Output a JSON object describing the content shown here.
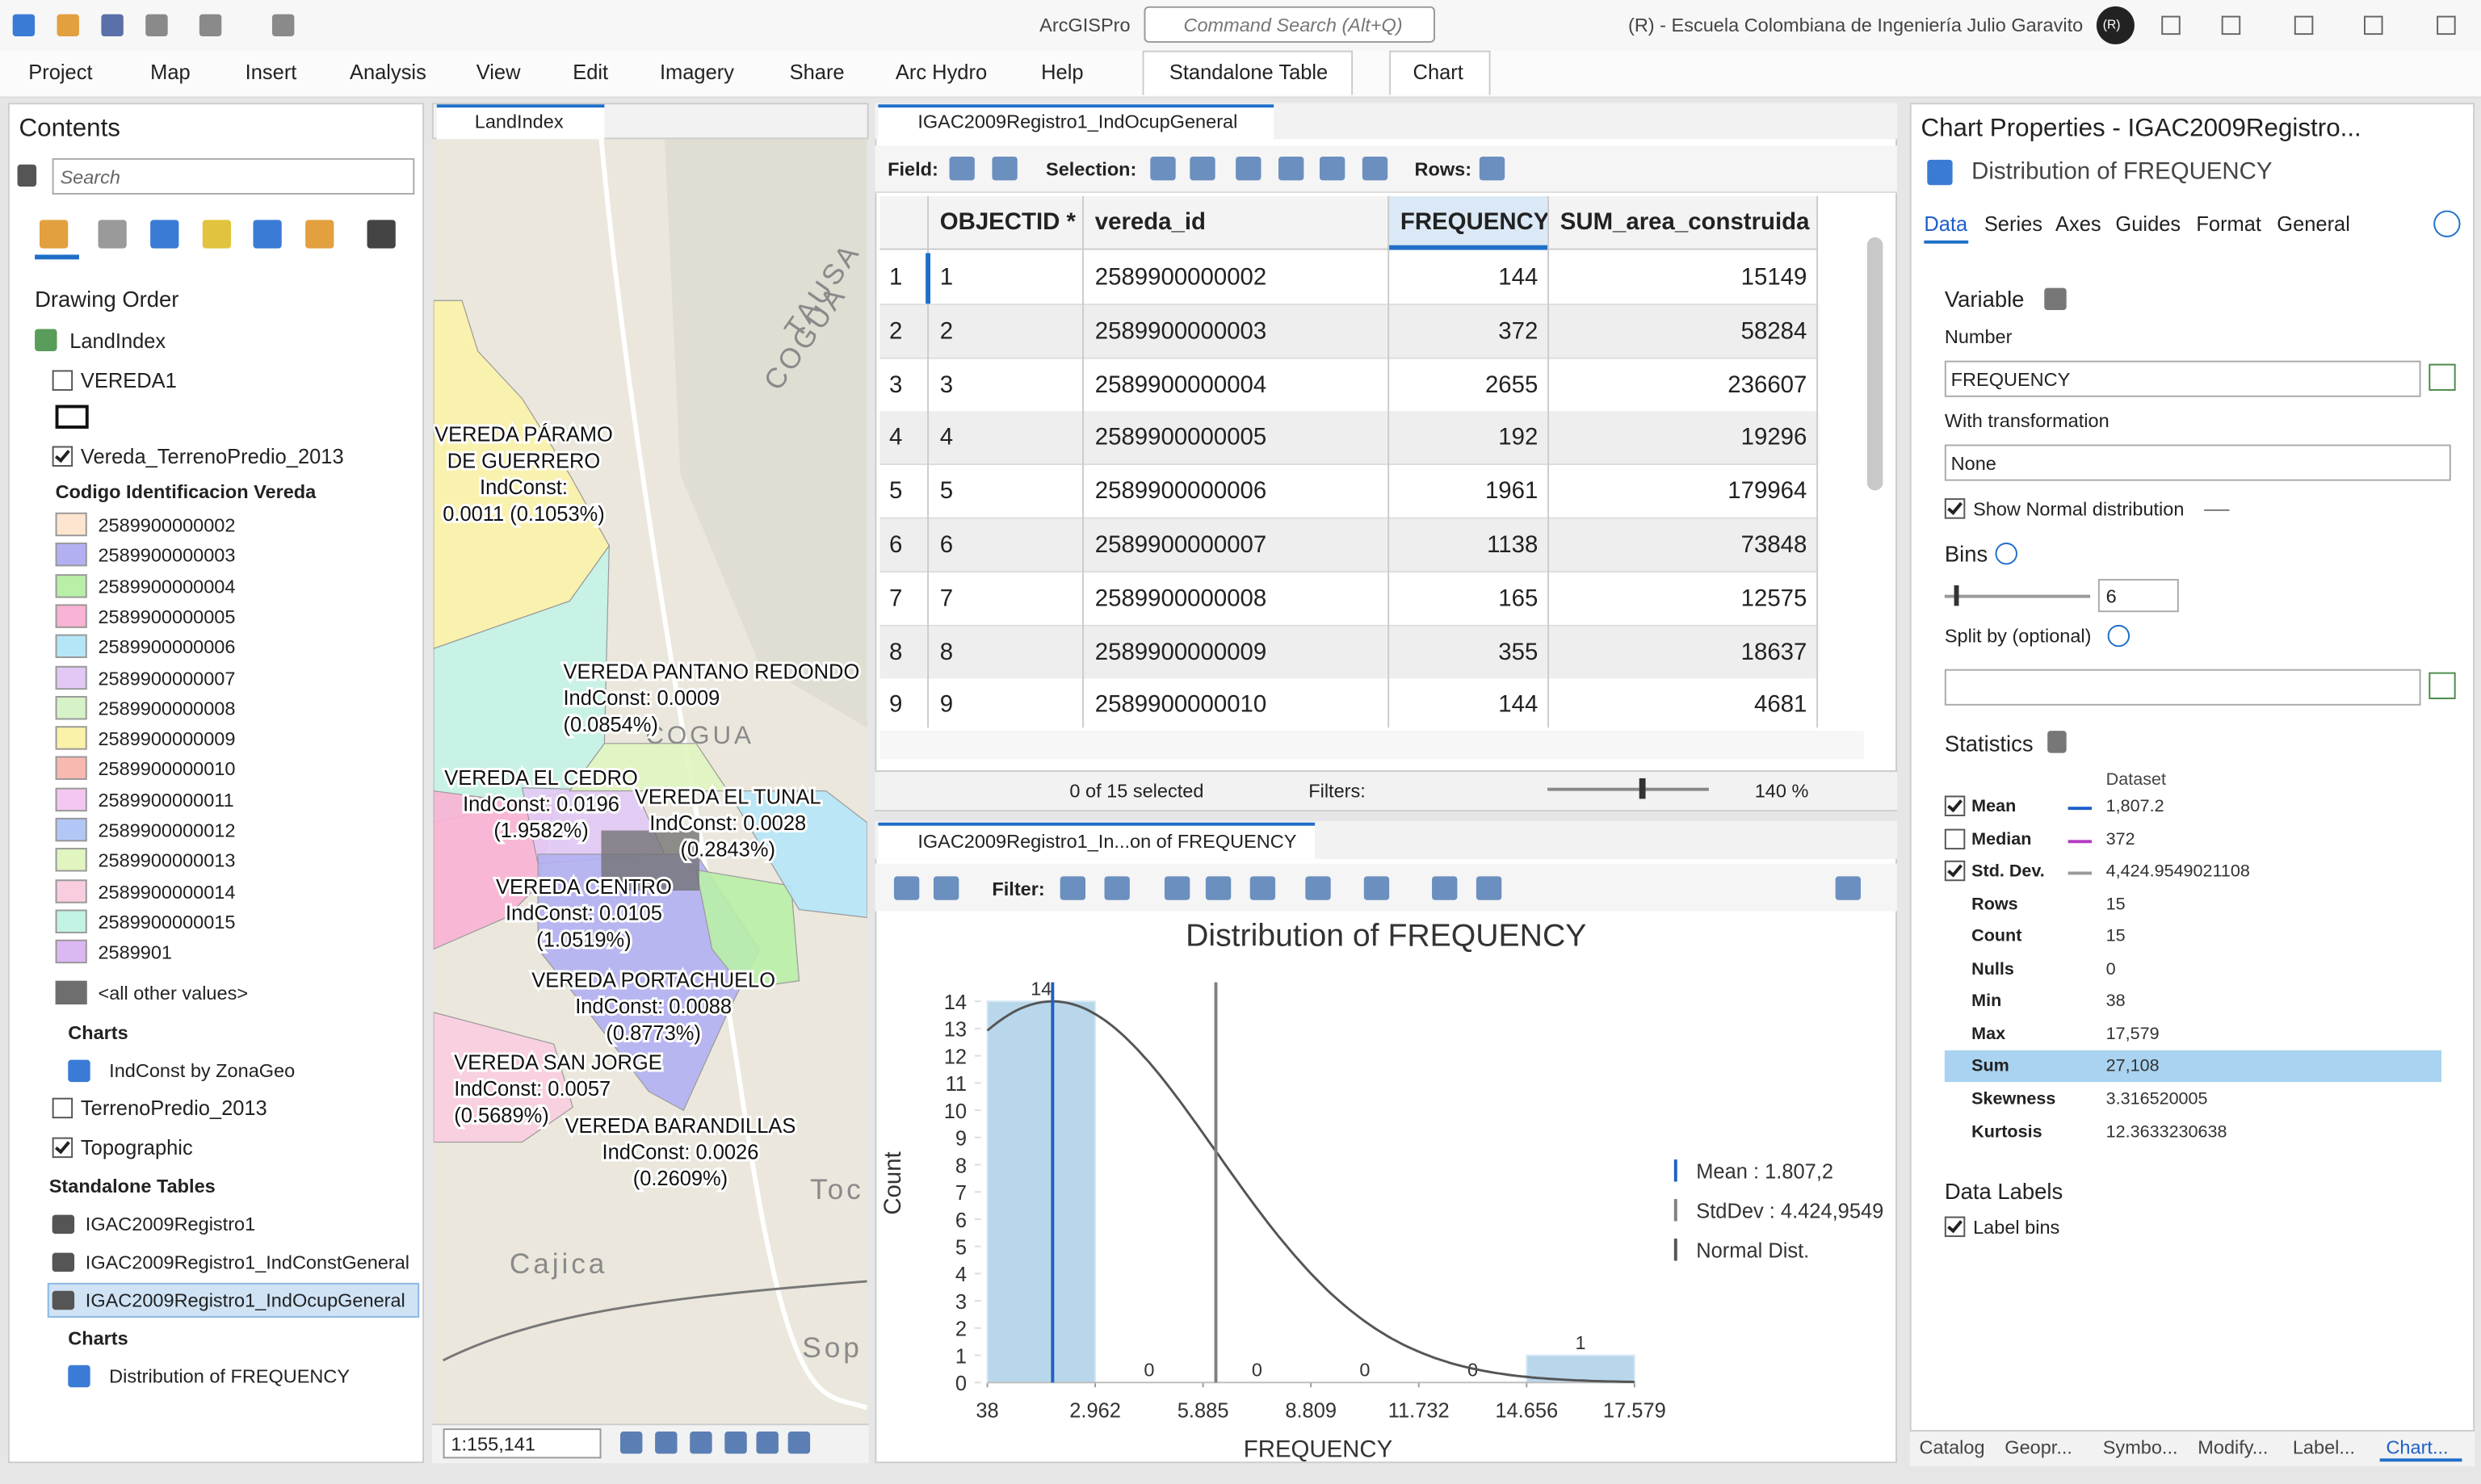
{
  "app": {
    "title": "ArcGISPro",
    "search_placeholder": "Command Search (Alt+Q)",
    "account": "(R) - Escuela Colombiana de Ingeniería Julio Garavito",
    "avatar": "(R)"
  },
  "ribbon": {
    "tabs": [
      "Project",
      "Map",
      "Insert",
      "Analysis",
      "View",
      "Edit",
      "Imagery",
      "Share",
      "Arc Hydro",
      "Help"
    ],
    "contextual_tabs": [
      "Standalone Table",
      "Chart"
    ]
  },
  "contents": {
    "title": "Contents",
    "search_placeholder": "Search",
    "heading": "Drawing Order",
    "map": "LandIndex",
    "vereda1": {
      "name": "VEREDA1",
      "checked": false
    },
    "vereda_layer": {
      "name": "Vereda_TerrenoPredio_2013",
      "checked": true,
      "field": "Codigo Identificacion Vereda",
      "classes": [
        {
          "label": "2589900000002",
          "color": "#fde5cf"
        },
        {
          "label": "2589900000003",
          "color": "#b3b0f2"
        },
        {
          "label": "2589900000004",
          "color": "#b9efa7"
        },
        {
          "label": "2589900000005",
          "color": "#f9b3d4"
        },
        {
          "label": "2589900000006",
          "color": "#b5e6f7"
        },
        {
          "label": "2589900000007",
          "color": "#e2c9f5"
        },
        {
          "label": "2589900000008",
          "color": "#d6f3c8"
        },
        {
          "label": "2589900000009",
          "color": "#fbf2a9"
        },
        {
          "label": "2589900000010",
          "color": "#f8b9b0"
        },
        {
          "label": "2589900000011",
          "color": "#f4c7f2"
        },
        {
          "label": "2589900000012",
          "color": "#b3c7f7"
        },
        {
          "label": "2589900000013",
          "color": "#e0f5c0"
        },
        {
          "label": "2589900000014",
          "color": "#f9cde0"
        },
        {
          "label": "2589900000015",
          "color": "#c3f3e5"
        },
        {
          "label": "2589901",
          "color": "#dcb8f2"
        }
      ],
      "other": {
        "label": "<all other values>",
        "color": "#6e6e6e"
      }
    },
    "charts_heading": "Charts",
    "layer_chart": "IndConst by ZonaGeo",
    "terreno": {
      "name": "TerrenoPredio_2013",
      "checked": false
    },
    "basemap": {
      "name": "Topographic",
      "checked": true
    },
    "tables_heading": "Standalone Tables",
    "tables": [
      "IGAC2009Registro1",
      "IGAC2009Registro1_IndConstGeneral",
      "IGAC2009Registro1_IndOcupGeneral"
    ],
    "table_charts_heading": "Charts",
    "table_chart": "Distribution of FREQUENCY"
  },
  "map": {
    "tab": "LandIndex",
    "scale": "1:155,141",
    "labels": [
      [
        "VEREDA PÁRAMO",
        "DE GUERRERO",
        "IndConst:",
        "0.0011 (0.1053%)"
      ],
      [
        "VEREDA PANTANO REDONDO",
        "IndConst: 0.0009",
        "(0.0854%)"
      ],
      [
        "VEREDA EL CEDRO",
        "IndConst: 0.0196",
        "(1.9582%)"
      ],
      [
        "VEREDA EL TUNAL",
        "IndConst: 0.0028",
        "(0.2843%)"
      ],
      [
        "VEREDA CENTRO",
        "IndConst: 0.0105",
        "(1.0519%)"
      ],
      [
        "VEREDA PORTACHUELO",
        "IndConst: 0.0088",
        "(0.8773%)"
      ],
      [
        "VEREDA SAN JORGE",
        "IndConst: 0.0057",
        "(0.5689%)"
      ],
      [
        "VEREDA BARANDILLAS",
        "IndConst: 0.0026",
        "(0.2609%)"
      ]
    ],
    "basemap_labels": [
      "TAUSA",
      "COGUA",
      "COGUA",
      "Cajica",
      "Toc",
      "Sop"
    ]
  },
  "table": {
    "tab": "IGAC2009Registro1_IndOcupGeneral",
    "field_label": "Field:",
    "selection_label": "Selection:",
    "rows_label": "Rows:",
    "columns": [
      "OBJECTID *",
      "vereda_id",
      "FREQUENCY",
      "SUM_area_construida"
    ],
    "row_numbers": [
      1,
      2,
      3,
      4,
      5,
      6,
      7,
      8,
      9
    ],
    "rows": [
      [
        1,
        "2589900000002",
        144,
        15149
      ],
      [
        2,
        "2589900000003",
        372,
        58284
      ],
      [
        3,
        "2589900000004",
        2655,
        236607
      ],
      [
        4,
        "2589900000005",
        192,
        19296
      ],
      [
        5,
        "2589900000006",
        1961,
        179964
      ],
      [
        6,
        "2589900000007",
        1138,
        73848
      ],
      [
        7,
        "2589900000008",
        165,
        12575
      ],
      [
        8,
        "2589900000009",
        355,
        18637
      ],
      [
        9,
        "2589900000010",
        144,
        4681
      ]
    ],
    "status": "0 of 15 selected",
    "filters_label": "Filters:",
    "zoom": "140 %"
  },
  "chart_panel": {
    "tab": "IGAC2009Registro1_In...on of FREQUENCY",
    "filter_label": "Filter:"
  },
  "chart_data": {
    "type": "histogram",
    "title": "Distribution of FREQUENCY",
    "x_label": "FREQUENCY",
    "y_label": "Count",
    "bins": [
      38,
      2961.5,
      5885,
      8808.5,
      11732,
      14655.5,
      17579
    ],
    "counts": [
      14,
      0,
      0,
      0,
      0,
      1
    ],
    "color": "#b9d7ea",
    "xlim": [
      38,
      17579
    ],
    "xticks": [
      38,
      {
        "value": 2961.5,
        "label": "2.962"
      },
      {
        "value": 5885,
        "label": "5.885"
      },
      {
        "value": 8808.5,
        "label": "8.809"
      },
      {
        "value": 11732,
        "label": "11.732"
      },
      {
        "value": 14655.5,
        "label": "14.656"
      },
      {
        "value": 17579,
        "label": "17.579"
      }
    ],
    "ylim": [
      0,
      14
    ],
    "yticks": [
      0,
      1,
      2,
      3,
      4,
      5,
      6,
      7,
      8,
      9,
      10,
      11,
      12,
      13,
      14
    ],
    "mean": {
      "value": 1807.2,
      "label": "Mean : 1.807,2",
      "color": "#1f5fc8"
    },
    "std_dev": {
      "value": 4424.9549021108,
      "label": "StdDev : 4.424,9549",
      "color": "#808080"
    },
    "normal": {
      "label": "Normal Dist.",
      "color": "#555555"
    }
  },
  "properties": {
    "title": "Chart Properties - IGAC2009Registro...",
    "chart_name": "Distribution of FREQUENCY",
    "tabs": [
      "Data",
      "Series",
      "Axes",
      "Guides",
      "Format",
      "General"
    ],
    "variable_heading": "Variable",
    "number_label": "Number",
    "number_value": "FREQUENCY",
    "transformation_label": "With transformation",
    "transformation_value": "None",
    "show_normal": {
      "label": "Show Normal distribution",
      "checked": true
    },
    "bins_heading": "Bins",
    "bins_value": "6",
    "split_label": "Split by (optional)",
    "statistics_heading": "Statistics",
    "dataset_label": "Dataset",
    "statistics": [
      {
        "name": "Mean",
        "value": "1,807.2",
        "checked": true,
        "color": "#1f5fc8"
      },
      {
        "name": "Median",
        "value": "372",
        "checked": false,
        "color": "#b23cc0"
      },
      {
        "name": "Std. Dev.",
        "value": "4,424.9549021108",
        "checked": true,
        "color": "#9a9a9a"
      },
      {
        "name": "Rows",
        "value": "15"
      },
      {
        "name": "Count",
        "value": "15"
      },
      {
        "name": "Nulls",
        "value": "0"
      },
      {
        "name": "Min",
        "value": "38"
      },
      {
        "name": "Max",
        "value": "17,579"
      },
      {
        "name": "Sum",
        "value": "27,108",
        "selected": true
      },
      {
        "name": "Skewness",
        "value": "3.316520005"
      },
      {
        "name": "Kurtosis",
        "value": "12.3633230638"
      }
    ],
    "data_labels_heading": "Data Labels",
    "label_bins": {
      "label": "Label bins",
      "checked": true
    }
  },
  "dock_tabs": [
    "Catalog",
    "Geopr...",
    "Symbo...",
    "Modify...",
    "Label...",
    "Chart..."
  ]
}
